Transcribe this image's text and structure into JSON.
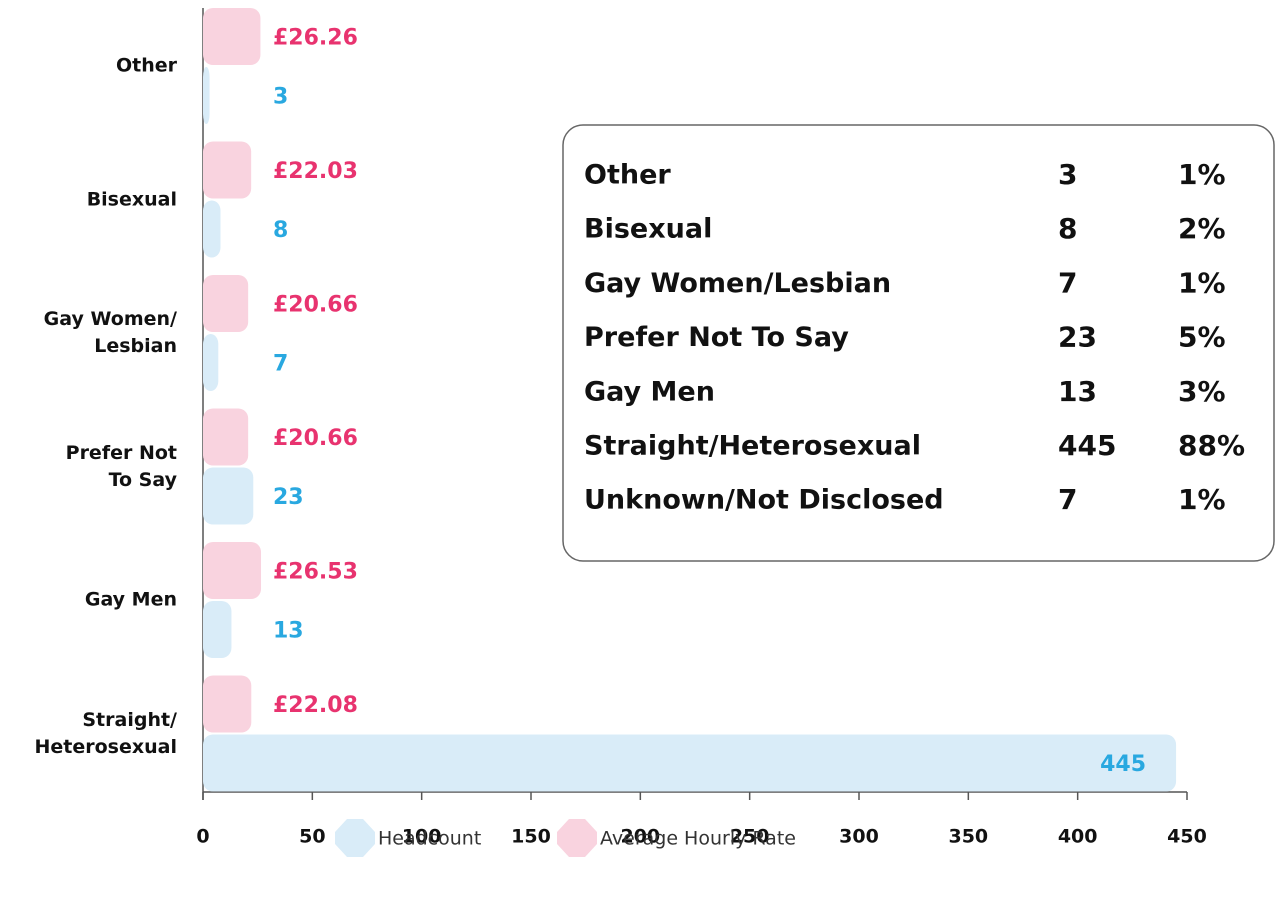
{
  "chart_data": {
    "type": "bar",
    "orientation": "horizontal",
    "categories": [
      "Other",
      "Bisexual",
      "Gay Women/\nLesbian",
      "Prefer Not\nTo Say",
      "Gay Men",
      "Straight/\nHeterosexual"
    ],
    "series": [
      {
        "name": "Average Hourly Rate",
        "color": "#f9d3df",
        "label_color": "#e8336f",
        "values": [
          26.26,
          22.03,
          20.66,
          20.66,
          26.53,
          22.08
        ],
        "value_labels": [
          "£26.26",
          "£22.03",
          "£20.66",
          "£20.66",
          "£26.53",
          "£22.08"
        ]
      },
      {
        "name": "Headcount",
        "color": "#d9ecf8",
        "label_color": "#29a8e0",
        "values": [
          3,
          8,
          7,
          23,
          13,
          445
        ]
      }
    ],
    "xlim": [
      0,
      450
    ],
    "xticks": [
      0,
      50,
      100,
      150,
      200,
      250,
      300,
      350,
      400,
      450
    ],
    "legend": [
      "Headcount",
      "Average Hourly Rate"
    ]
  },
  "table": {
    "rows": [
      [
        "Other",
        "3",
        "1%"
      ],
      [
        "Bisexual",
        "8",
        "2%"
      ],
      [
        "Gay Women/Lesbian",
        "7",
        "1%"
      ],
      [
        "Prefer Not To Say",
        "23",
        "5%"
      ],
      [
        "Gay Men",
        "13",
        "3%"
      ],
      [
        "Straight/Heterosexual",
        "445",
        "88%"
      ],
      [
        "Unknown/Not Disclosed",
        "7",
        "1%"
      ]
    ]
  }
}
